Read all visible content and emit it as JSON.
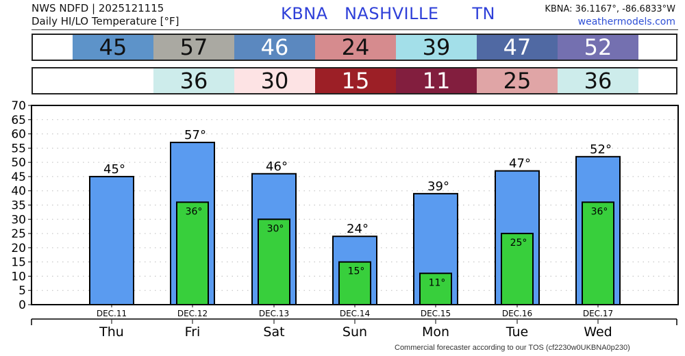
{
  "header": {
    "line1": "NWS NDFD | 2025121115",
    "line2": "Daily HI/LO Temperature [°F]",
    "station_id": "KBNA",
    "city": "NASHVILLE",
    "state": "TN",
    "coords": "KBNA: 36.1167°, -86.6833°W",
    "site": "weathermodels.com"
  },
  "hi_strip": [
    {
      "value": "45",
      "bg": "#5d93c9",
      "fg": "#111111"
    },
    {
      "value": "57",
      "bg": "#aaa9a2",
      "fg": "#111111"
    },
    {
      "value": "46",
      "bg": "#5b88bf",
      "fg": "#ffffff"
    },
    {
      "value": "24",
      "bg": "#d68b8e",
      "fg": "#111111"
    },
    {
      "value": "39",
      "bg": "#a3dfe9",
      "fg": "#111111"
    },
    {
      "value": "47",
      "bg": "#5069a3",
      "fg": "#ffffff"
    },
    {
      "value": "52",
      "bg": "#7470b0",
      "fg": "#ffffff"
    }
  ],
  "lo_strip": [
    {
      "value": "",
      "bg": "#ffffff",
      "fg": "#111111"
    },
    {
      "value": "36",
      "bg": "#cdeceb",
      "fg": "#111111"
    },
    {
      "value": "30",
      "bg": "#fde3e4",
      "fg": "#111111"
    },
    {
      "value": "15",
      "bg": "#9c1f26",
      "fg": "#ffffff"
    },
    {
      "value": "11",
      "bg": "#821e3e",
      "fg": "#ffffff"
    },
    {
      "value": "25",
      "bg": "#e0a5a6",
      "fg": "#111111"
    },
    {
      "value": "36",
      "bg": "#cdeceb",
      "fg": "#111111"
    }
  ],
  "colors": {
    "hi_bar": "#5a9bf0",
    "lo_bar": "#38cf3c",
    "title_blue": "#2e3fd8",
    "grid": "#bbbbbb"
  },
  "chart_data": {
    "type": "bar",
    "title": "Daily HI/LO Temperature [°F]",
    "xlabel": "",
    "ylabel": "",
    "ylim": [
      0,
      70
    ],
    "yticks": [
      0,
      5,
      10,
      15,
      20,
      25,
      30,
      35,
      40,
      45,
      50,
      55,
      60,
      65,
      70
    ],
    "grid": "dotted horizontal",
    "categories": [
      "DEC.11",
      "DEC.12",
      "DEC.13",
      "DEC.14",
      "DEC.15",
      "DEC.16",
      "DEC.17"
    ],
    "days": [
      "Thu",
      "Fri",
      "Sat",
      "Sun",
      "Mon",
      "Tue",
      "Wed"
    ],
    "series": [
      {
        "name": "High",
        "values": [
          45,
          57,
          46,
          24,
          39,
          47,
          52
        ],
        "labels": [
          "45°",
          "57°",
          "46°",
          "24°",
          "39°",
          "47°",
          "52°"
        ]
      },
      {
        "name": "Low",
        "values": [
          null,
          36,
          30,
          15,
          11,
          25,
          36
        ],
        "labels": [
          "",
          "36°",
          "30°",
          "15°",
          "11°",
          "25°",
          "36°"
        ]
      }
    ]
  },
  "footer": "Commercial forecaster according to our TOS (cf2230w0UKBNA0p230)"
}
